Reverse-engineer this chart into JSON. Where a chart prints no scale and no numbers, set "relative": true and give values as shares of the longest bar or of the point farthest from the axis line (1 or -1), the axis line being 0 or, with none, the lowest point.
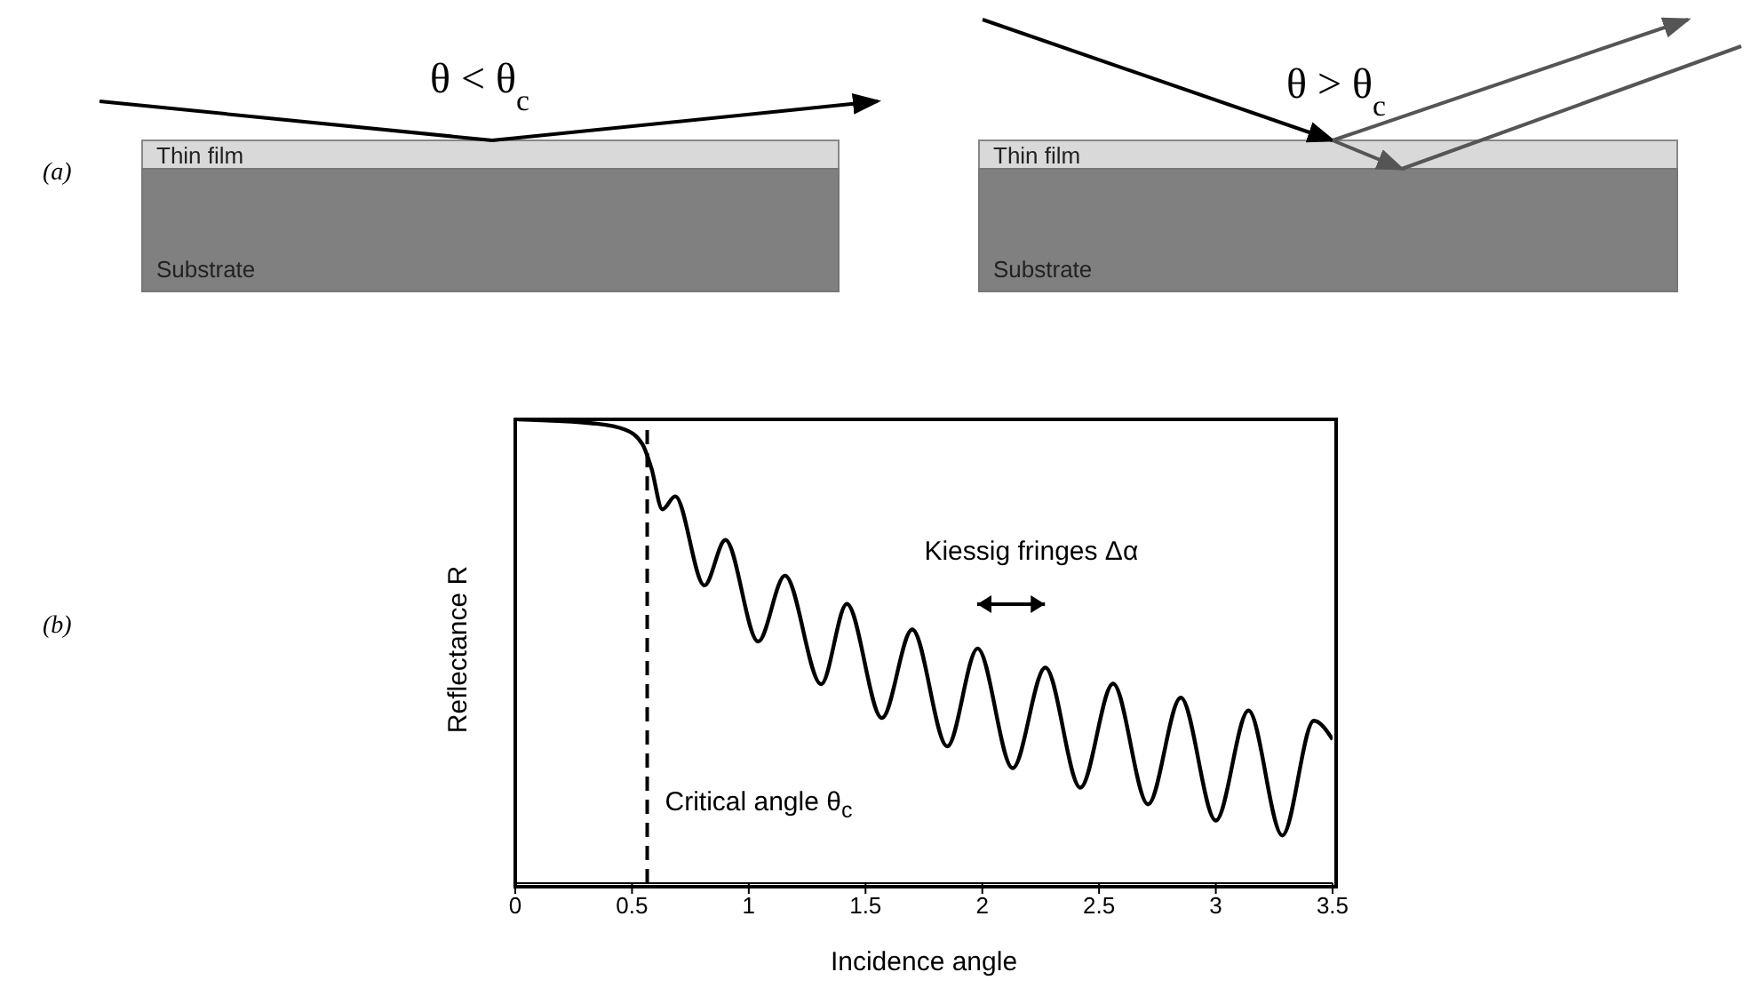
{
  "chart_data": {
    "type": "line",
    "relative": true,
    "xlabel": "Incidence angle",
    "ylabel": "Reflectance R",
    "x": [
      0.013,
      0.34,
      0.47,
      0.545,
      0.583,
      0.63,
      0.685,
      0.81,
      0.9,
      1.04,
      1.155,
      1.31,
      1.42,
      1.57,
      1.7,
      1.85,
      1.98,
      2.13,
      2.27,
      2.42,
      2.56,
      2.71,
      2.85,
      3.0,
      3.14,
      3.285,
      3.42,
      3.5
    ],
    "series": [
      {
        "color": "#000000",
        "values": [
          1.0,
          0.991,
          0.978,
          0.946,
          0.895,
          0.806,
          0.834,
          0.642,
          0.74,
          0.521,
          0.663,
          0.429,
          0.602,
          0.356,
          0.547,
          0.295,
          0.506,
          0.248,
          0.465,
          0.206,
          0.43,
          0.17,
          0.4,
          0.135,
          0.372,
          0.103,
          0.35,
          0.31
        ]
      }
    ],
    "xlim": [
      0,
      3.5
    ],
    "xticks": [
      0,
      0.5,
      1,
      1.5,
      2,
      2.5,
      3,
      3.5
    ],
    "tick_labels": "x",
    "marker": "none",
    "line_style": "solid",
    "ref_lines": [
      {
        "axis": "x",
        "value": 0.565,
        "label": "Critical angle θ$_{c}$",
        "line_style": "dashed",
        "color": "#000000"
      }
    ],
    "annotations": [
      "Kiessig fringes Δα",
      "(a)",
      "(b)",
      "Thin film",
      "Substrate",
      "θ < θ$_{c}$",
      "Thin film",
      "Substrate",
      "θ > θ$_{c}$"
    ]
  }
}
